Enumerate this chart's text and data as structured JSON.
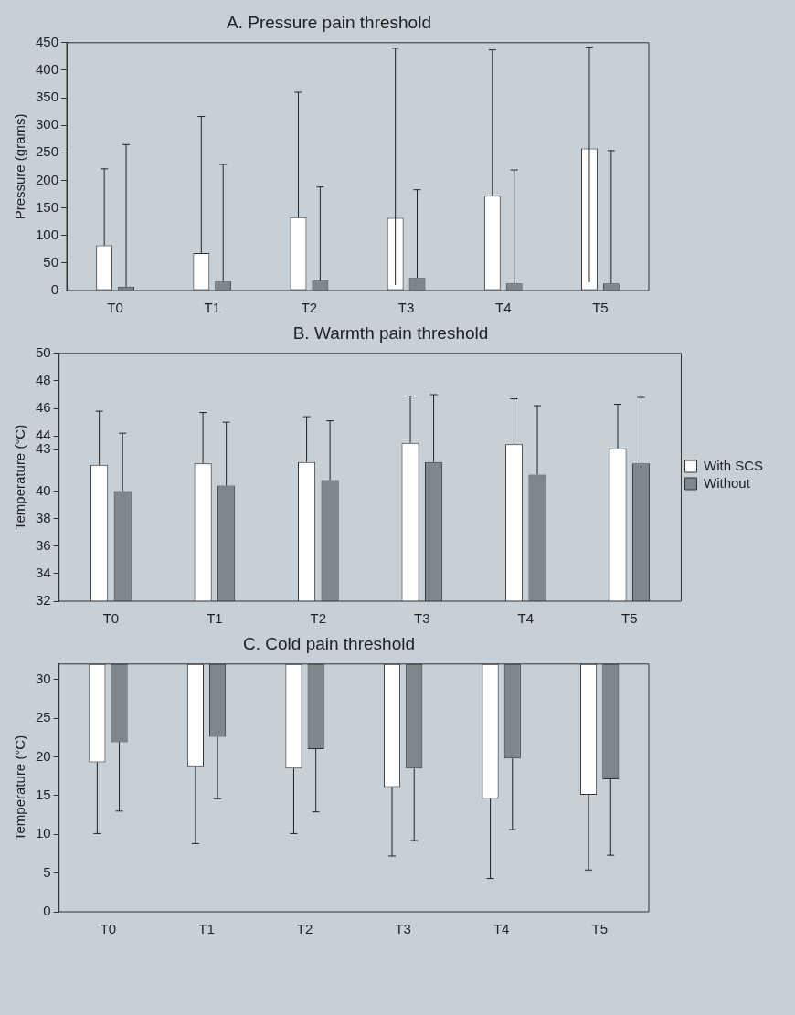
{
  "chart_data": [
    {
      "type": "bar",
      "title": "A. Pressure pain threshold",
      "ylabel": "Pressure (grams)",
      "categories": [
        "T0",
        "T1",
        "T2",
        "T3",
        "T4",
        "T5"
      ],
      "series": [
        {
          "color": "#ffffff",
          "values": [
            82,
            68,
            133,
            132,
            172,
            258
          ],
          "errors": [
            [
              82,
              221
            ],
            [
              68,
              316
            ],
            [
              133,
              360
            ],
            [
              10,
              440
            ],
            [
              172,
              437
            ],
            [
              15,
              442
            ]
          ]
        },
        {
          "color": "#7f868c",
          "values": [
            7,
            16,
            18,
            23,
            13,
            13
          ],
          "errors": [
            [
              7,
              265
            ],
            [
              16,
              229
            ],
            [
              18,
              188
            ],
            [
              23,
              183
            ],
            [
              13,
              219
            ],
            [
              13,
              254
            ]
          ]
        }
      ],
      "ylim": [
        0,
        450
      ],
      "yticks": [
        0,
        50,
        100,
        150,
        200,
        250,
        300,
        350,
        400,
        450
      ]
    },
    {
      "type": "bar",
      "title": "B. Warmth pain threshold",
      "ylabel": "Temperature (°C)",
      "categories": [
        "T0",
        "T1",
        "T2",
        "T3",
        "T4",
        "T5"
      ],
      "series": [
        {
          "name": "With SCS",
          "color": "#ffffff",
          "values": [
            41.9,
            42.0,
            42.1,
            43.5,
            43.4,
            43.1
          ],
          "errors": [
            [
              41.9,
              45.8
            ],
            [
              42.0,
              45.7
            ],
            [
              42.1,
              45.4
            ],
            [
              43.5,
              46.9
            ],
            [
              43.4,
              46.7
            ],
            [
              43.1,
              46.3
            ]
          ]
        },
        {
          "name": "Without",
          "color": "#7f868c",
          "values": [
            40.0,
            40.4,
            40.8,
            42.1,
            41.2,
            42.0
          ],
          "errors": [
            [
              40.0,
              44.2
            ],
            [
              40.4,
              45.0
            ],
            [
              40.8,
              45.1
            ],
            [
              42.1,
              47.0
            ],
            [
              41.2,
              46.2
            ],
            [
              42.0,
              46.8
            ]
          ]
        }
      ],
      "ylim": [
        32,
        50
      ],
      "yticks": [
        32,
        34,
        36,
        38,
        40,
        43,
        44,
        46,
        48,
        50
      ],
      "legend": "right"
    },
    {
      "type": "bar",
      "title": "C. Cold pain threshold",
      "ylabel": "Temperature (°C)",
      "categories": [
        "T0",
        "T1",
        "T2",
        "T3",
        "T4",
        "T5"
      ],
      "series": [
        {
          "color": "#ffffff",
          "base": [
            32,
            32,
            32,
            32,
            32,
            32
          ],
          "values": [
            -12.7,
            -13.2,
            -13.5,
            -15.9,
            -17.4,
            -16.9
          ],
          "errors": [
            [
              10.1,
              19.3
            ],
            [
              8.8,
              18.8
            ],
            [
              10.1,
              18.5
            ],
            [
              7.2,
              16.1
            ],
            [
              4.3,
              14.6
            ],
            [
              5.4,
              15.1
            ]
          ]
        },
        {
          "color": "#7f868c",
          "base": [
            32,
            32,
            32,
            32,
            32,
            32
          ],
          "values": [
            -10.1,
            -9.4,
            -11.0,
            -13.5,
            -12.2,
            -14.9
          ],
          "errors": [
            [
              13.0,
              21.9
            ],
            [
              14.6,
              22.6
            ],
            [
              12.9,
              21.0
            ],
            [
              9.2,
              18.5
            ],
            [
              10.6,
              19.8
            ],
            [
              7.3,
              17.1
            ]
          ]
        }
      ],
      "ylim": [
        0,
        32
      ],
      "yticks": [
        0,
        5,
        10,
        15,
        20,
        25,
        30
      ]
    }
  ]
}
